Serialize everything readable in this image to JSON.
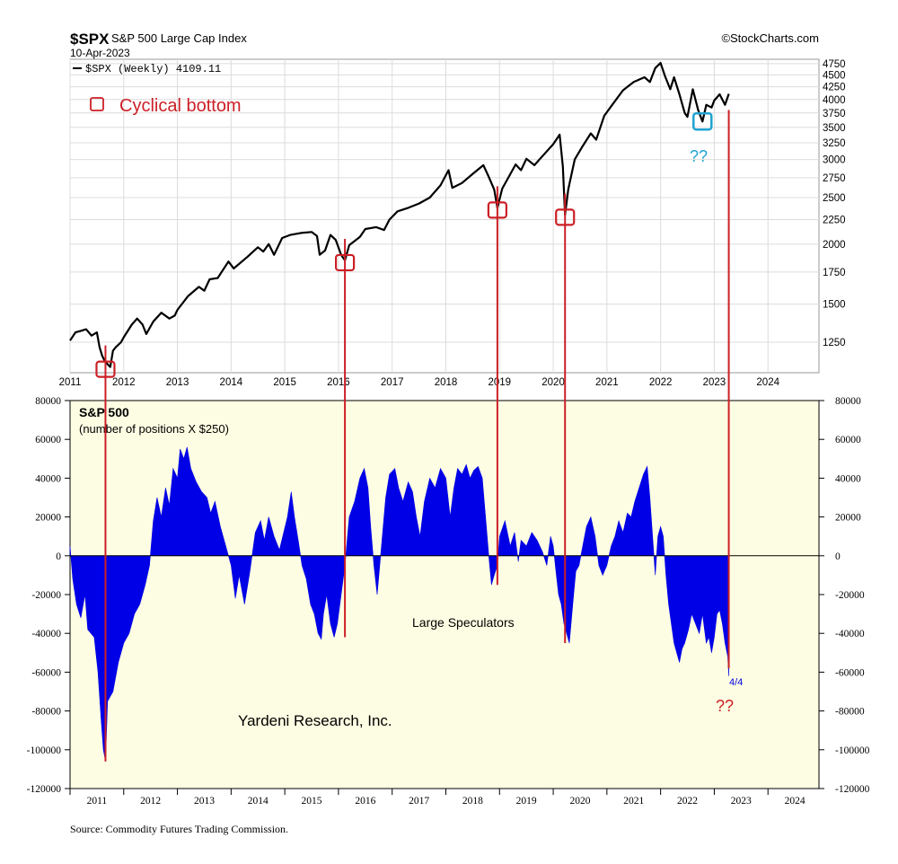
{
  "header": {
    "symbol": "$SPX",
    "name": "S&P 500 Large Cap Index",
    "date": "10-Apr-2023",
    "legend": "$SPX (Weekly) 4109.11",
    "source": "©StockCharts.com"
  },
  "annotations": {
    "cyclical_bottom": "Cyclical bottom",
    "qq_top": "??",
    "qq_bottom": "??",
    "last_label": "4/4",
    "yardeni": "Yardeni Research, Inc.",
    "large_specs": "Large Speculators",
    "footer_source": "Source: Commodity Futures Trading Commission."
  },
  "colors": {
    "price_line": "#000000",
    "positions_fill": "#0000e6",
    "cot_bg": "#fdfde3",
    "annotation_red": "#cc1f26",
    "highlight_blue": "#1fa3d0"
  },
  "chart_data": [
    {
      "type": "line",
      "series_name": "$SPX (Weekly)",
      "y_scale": "log",
      "x_range": [
        2011.0,
        2024.95
      ],
      "y_range": [
        1080,
        4850
      ],
      "x_ticks": [
        "2011",
        "2012",
        "2013",
        "2014",
        "2015",
        "2016",
        "2017",
        "2018",
        "2019",
        "2020",
        "2021",
        "2022",
        "2023",
        "2024"
      ],
      "y_ticks": [
        4750,
        4500,
        4250,
        4000,
        3750,
        3500,
        3250,
        3000,
        2750,
        2500,
        2250,
        2000,
        1750,
        1500,
        1250
      ],
      "points": [
        [
          2011.0,
          1260
        ],
        [
          2011.1,
          1310
        ],
        [
          2011.2,
          1320
        ],
        [
          2011.3,
          1330
        ],
        [
          2011.4,
          1290
        ],
        [
          2011.5,
          1310
        ],
        [
          2011.55,
          1220
        ],
        [
          2011.6,
          1170
        ],
        [
          2011.65,
          1140
        ],
        [
          2011.7,
          1125
        ],
        [
          2011.75,
          1110
        ],
        [
          2011.8,
          1200
        ],
        [
          2011.85,
          1220
        ],
        [
          2011.95,
          1250
        ],
        [
          2012.0,
          1280
        ],
        [
          2012.15,
          1360
        ],
        [
          2012.25,
          1400
        ],
        [
          2012.35,
          1360
        ],
        [
          2012.42,
          1300
        ],
        [
          2012.55,
          1380
        ],
        [
          2012.7,
          1440
        ],
        [
          2012.85,
          1400
        ],
        [
          2012.95,
          1420
        ],
        [
          2013.0,
          1460
        ],
        [
          2013.2,
          1560
        ],
        [
          2013.4,
          1630
        ],
        [
          2013.5,
          1600
        ],
        [
          2013.6,
          1690
        ],
        [
          2013.75,
          1700
        ],
        [
          2013.95,
          1840
        ],
        [
          2014.05,
          1780
        ],
        [
          2014.3,
          1880
        ],
        [
          2014.5,
          1970
        ],
        [
          2014.6,
          1930
        ],
        [
          2014.7,
          2000
        ],
        [
          2014.8,
          1900
        ],
        [
          2014.95,
          2060
        ],
        [
          2015.1,
          2090
        ],
        [
          2015.3,
          2110
        ],
        [
          2015.5,
          2120
        ],
        [
          2015.6,
          2080
        ],
        [
          2015.65,
          1900
        ],
        [
          2015.75,
          1940
        ],
        [
          2015.85,
          2090
        ],
        [
          2015.95,
          2040
        ],
        [
          2016.05,
          1900
        ],
        [
          2016.12,
          1850
        ],
        [
          2016.2,
          1990
        ],
        [
          2016.4,
          2070
        ],
        [
          2016.5,
          2150
        ],
        [
          2016.7,
          2170
        ],
        [
          2016.85,
          2140
        ],
        [
          2016.95,
          2250
        ],
        [
          2017.1,
          2340
        ],
        [
          2017.3,
          2380
        ],
        [
          2017.5,
          2430
        ],
        [
          2017.7,
          2500
        ],
        [
          2017.9,
          2650
        ],
        [
          2018.05,
          2850
        ],
        [
          2018.12,
          2620
        ],
        [
          2018.3,
          2680
        ],
        [
          2018.5,
          2800
        ],
        [
          2018.7,
          2920
        ],
        [
          2018.8,
          2760
        ],
        [
          2018.9,
          2600
        ],
        [
          2018.96,
          2380
        ],
        [
          2019.05,
          2610
        ],
        [
          2019.3,
          2930
        ],
        [
          2019.4,
          2850
        ],
        [
          2019.5,
          3010
        ],
        [
          2019.65,
          2920
        ],
        [
          2019.8,
          3050
        ],
        [
          2020.0,
          3230
        ],
        [
          2020.12,
          3380
        ],
        [
          2020.18,
          2900
        ],
        [
          2020.22,
          2300
        ],
        [
          2020.28,
          2600
        ],
        [
          2020.4,
          3000
        ],
        [
          2020.55,
          3200
        ],
        [
          2020.7,
          3400
        ],
        [
          2020.8,
          3300
        ],
        [
          2020.95,
          3700
        ],
        [
          2021.1,
          3900
        ],
        [
          2021.3,
          4180
        ],
        [
          2021.5,
          4350
        ],
        [
          2021.7,
          4450
        ],
        [
          2021.8,
          4350
        ],
        [
          2021.9,
          4650
        ],
        [
          2022.0,
          4766
        ],
        [
          2022.08,
          4480
        ],
        [
          2022.18,
          4200
        ],
        [
          2022.25,
          4450
        ],
        [
          2022.35,
          4100
        ],
        [
          2022.45,
          3750
        ],
        [
          2022.5,
          3680
        ],
        [
          2022.6,
          4200
        ],
        [
          2022.7,
          3800
        ],
        [
          2022.78,
          3600
        ],
        [
          2022.85,
          3900
        ],
        [
          2022.95,
          3850
        ],
        [
          2023.0,
          3980
        ],
        [
          2023.1,
          4100
        ],
        [
          2023.2,
          3900
        ],
        [
          2023.27,
          4110
        ]
      ]
    },
    {
      "type": "area",
      "title": "S&P 500",
      "subtitle": "(number of positions X $250)",
      "series_name": "Large Speculators",
      "x_range": [
        2011.0,
        2024.95
      ],
      "y_range": [
        -120000,
        80000
      ],
      "x_ticks": [
        "2011",
        "2012",
        "2013",
        "2014",
        "2015",
        "2016",
        "2017",
        "2018",
        "2019",
        "2020",
        "2021",
        "2022",
        "2023",
        "2024"
      ],
      "y_ticks": [
        80000,
        60000,
        40000,
        20000,
        0,
        -20000,
        -40000,
        -60000,
        -80000,
        -100000,
        -120000
      ],
      "last_value_label": "4/4",
      "points": [
        [
          2011.0,
          5000
        ],
        [
          2011.05,
          -12000
        ],
        [
          2011.12,
          -25000
        ],
        [
          2011.2,
          -32000
        ],
        [
          2011.28,
          -20000
        ],
        [
          2011.33,
          -38000
        ],
        [
          2011.45,
          -42000
        ],
        [
          2011.52,
          -60000
        ],
        [
          2011.58,
          -85000
        ],
        [
          2011.62,
          -100000
        ],
        [
          2011.66,
          -106000
        ],
        [
          2011.7,
          -75000
        ],
        [
          2011.8,
          -70000
        ],
        [
          2011.9,
          -55000
        ],
        [
          2012.0,
          -45000
        ],
        [
          2012.1,
          -40000
        ],
        [
          2012.2,
          -30000
        ],
        [
          2012.3,
          -25000
        ],
        [
          2012.4,
          -15000
        ],
        [
          2012.48,
          -5000
        ],
        [
          2012.55,
          18000
        ],
        [
          2012.62,
          30000
        ],
        [
          2012.7,
          20000
        ],
        [
          2012.78,
          35000
        ],
        [
          2012.85,
          26000
        ],
        [
          2012.92,
          45000
        ],
        [
          2013.0,
          40000
        ],
        [
          2013.05,
          55000
        ],
        [
          2013.12,
          50000
        ],
        [
          2013.18,
          56000
        ],
        [
          2013.25,
          45000
        ],
        [
          2013.35,
          38000
        ],
        [
          2013.45,
          33000
        ],
        [
          2013.55,
          30000
        ],
        [
          2013.62,
          22000
        ],
        [
          2013.7,
          28000
        ],
        [
          2013.8,
          15000
        ],
        [
          2013.9,
          5000
        ],
        [
          2014.0,
          -5000
        ],
        [
          2014.08,
          -22000
        ],
        [
          2014.15,
          -10000
        ],
        [
          2014.25,
          -25000
        ],
        [
          2014.35,
          -8000
        ],
        [
          2014.45,
          12000
        ],
        [
          2014.55,
          18000
        ],
        [
          2014.62,
          8000
        ],
        [
          2014.7,
          20000
        ],
        [
          2014.8,
          10000
        ],
        [
          2014.9,
          3000
        ],
        [
          2014.98,
          12000
        ],
        [
          2015.05,
          20000
        ],
        [
          2015.12,
          33000
        ],
        [
          2015.18,
          20000
        ],
        [
          2015.25,
          8000
        ],
        [
          2015.32,
          -5000
        ],
        [
          2015.4,
          -12000
        ],
        [
          2015.48,
          -25000
        ],
        [
          2015.55,
          -30000
        ],
        [
          2015.62,
          -40000
        ],
        [
          2015.68,
          -43000
        ],
        [
          2015.72,
          -30000
        ],
        [
          2015.78,
          -20000
        ],
        [
          2015.85,
          -35000
        ],
        [
          2015.92,
          -42000
        ],
        [
          2015.98,
          -35000
        ],
        [
          2016.05,
          -20000
        ],
        [
          2016.12,
          -5000
        ],
        [
          2016.2,
          20000
        ],
        [
          2016.3,
          28000
        ],
        [
          2016.4,
          40000
        ],
        [
          2016.48,
          45000
        ],
        [
          2016.55,
          35000
        ],
        [
          2016.6,
          15000
        ],
        [
          2016.66,
          -5000
        ],
        [
          2016.72,
          -20000
        ],
        [
          2016.8,
          5000
        ],
        [
          2016.88,
          30000
        ],
        [
          2016.95,
          42000
        ],
        [
          2017.05,
          45000
        ],
        [
          2017.12,
          35000
        ],
        [
          2017.2,
          28000
        ],
        [
          2017.3,
          38000
        ],
        [
          2017.38,
          33000
        ],
        [
          2017.45,
          20000
        ],
        [
          2017.52,
          10000
        ],
        [
          2017.6,
          28000
        ],
        [
          2017.7,
          40000
        ],
        [
          2017.8,
          35000
        ],
        [
          2017.9,
          45000
        ],
        [
          2018.0,
          40000
        ],
        [
          2018.08,
          20000
        ],
        [
          2018.15,
          35000
        ],
        [
          2018.22,
          45000
        ],
        [
          2018.3,
          42000
        ],
        [
          2018.38,
          47000
        ],
        [
          2018.45,
          40000
        ],
        [
          2018.52,
          44000
        ],
        [
          2018.6,
          46000
        ],
        [
          2018.68,
          40000
        ],
        [
          2018.74,
          20000
        ],
        [
          2018.8,
          0
        ],
        [
          2018.85,
          -15000
        ],
        [
          2018.9,
          -10000
        ],
        [
          2018.96,
          -5000
        ],
        [
          2019.0,
          10000
        ],
        [
          2019.1,
          18000
        ],
        [
          2019.2,
          5000
        ],
        [
          2019.28,
          12000
        ],
        [
          2019.35,
          -3000
        ],
        [
          2019.4,
          8000
        ],
        [
          2019.5,
          5000
        ],
        [
          2019.6,
          12000
        ],
        [
          2019.7,
          8000
        ],
        [
          2019.8,
          2000
        ],
        [
          2019.88,
          -5000
        ],
        [
          2019.95,
          10000
        ],
        [
          2020.0,
          5000
        ],
        [
          2020.05,
          -8000
        ],
        [
          2020.1,
          -20000
        ],
        [
          2020.15,
          -25000
        ],
        [
          2020.2,
          -35000
        ],
        [
          2020.25,
          -40000
        ],
        [
          2020.3,
          -45000
        ],
        [
          2020.38,
          -20000
        ],
        [
          2020.42,
          -8000
        ],
        [
          2020.48,
          -5000
        ],
        [
          2020.55,
          5000
        ],
        [
          2020.62,
          15000
        ],
        [
          2020.7,
          20000
        ],
        [
          2020.78,
          10000
        ],
        [
          2020.85,
          -5000
        ],
        [
          2020.92,
          -10000
        ],
        [
          2021.0,
          -5000
        ],
        [
          2021.08,
          5000
        ],
        [
          2021.15,
          10000
        ],
        [
          2021.22,
          18000
        ],
        [
          2021.3,
          12000
        ],
        [
          2021.38,
          22000
        ],
        [
          2021.45,
          20000
        ],
        [
          2021.52,
          28000
        ],
        [
          2021.6,
          35000
        ],
        [
          2021.68,
          42000
        ],
        [
          2021.75,
          46000
        ],
        [
          2021.8,
          30000
        ],
        [
          2021.85,
          10000
        ],
        [
          2021.9,
          -10000
        ],
        [
          2021.95,
          10000
        ],
        [
          2022.0,
          15000
        ],
        [
          2022.05,
          10000
        ],
        [
          2022.1,
          -10000
        ],
        [
          2022.15,
          -25000
        ],
        [
          2022.2,
          -35000
        ],
        [
          2022.25,
          -45000
        ],
        [
          2022.3,
          -50000
        ],
        [
          2022.35,
          -55000
        ],
        [
          2022.4,
          -48000
        ],
        [
          2022.45,
          -45000
        ],
        [
          2022.52,
          -38000
        ],
        [
          2022.58,
          -30000
        ],
        [
          2022.65,
          -35000
        ],
        [
          2022.72,
          -40000
        ],
        [
          2022.78,
          -30000
        ],
        [
          2022.85,
          -45000
        ],
        [
          2022.9,
          -42000
        ],
        [
          2022.95,
          -50000
        ],
        [
          2023.0,
          -42000
        ],
        [
          2023.05,
          -30000
        ],
        [
          2023.1,
          -28000
        ],
        [
          2023.15,
          -35000
        ],
        [
          2023.2,
          -45000
        ],
        [
          2023.25,
          -52000
        ],
        [
          2023.27,
          -62000
        ]
      ]
    }
  ],
  "markers": [
    {
      "x": 2011.66,
      "y": 1110,
      "cot": -106000
    },
    {
      "x": 2016.12,
      "y": 1850,
      "cot": -42000
    },
    {
      "x": 2018.96,
      "y": 2380,
      "cot": -15000
    },
    {
      "x": 2020.22,
      "y": 2300,
      "cot": -45000
    },
    {
      "x": 2023.27,
      "y": 4110,
      "cot": -58000
    }
  ],
  "blue_marker": {
    "x": 2022.78,
    "y": 3600
  }
}
